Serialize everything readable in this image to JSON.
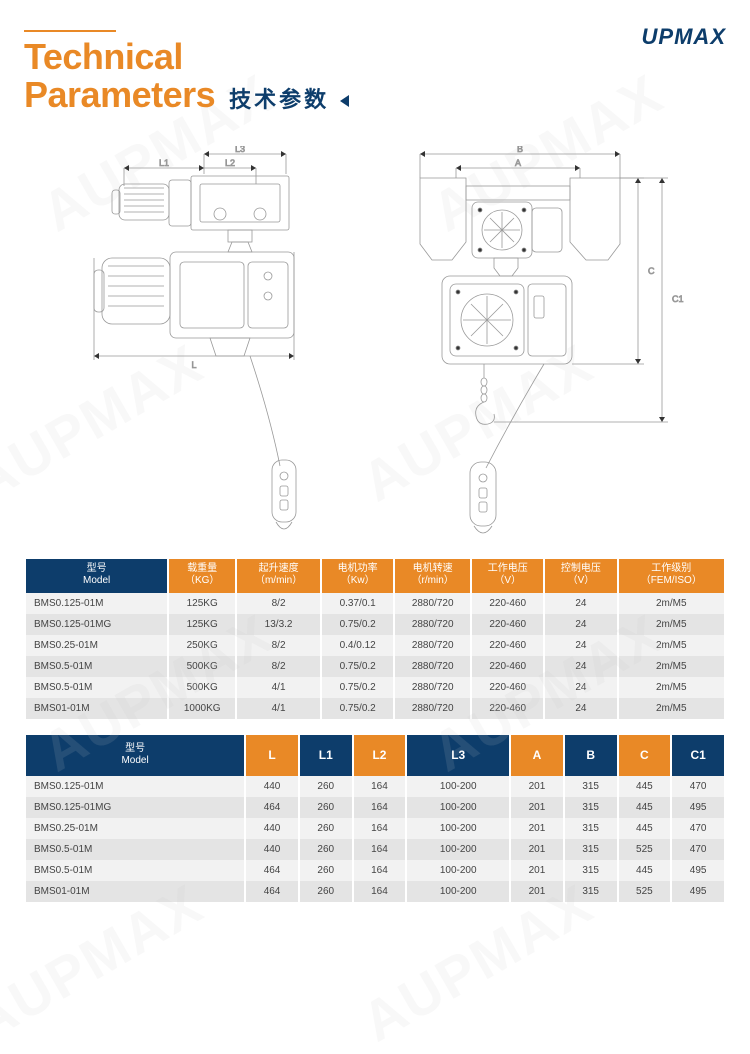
{
  "brand": "UPMAX",
  "title": {
    "en1": "Technical",
    "en2": "Parameters",
    "cn": "技术参数"
  },
  "diagram": {
    "labels": {
      "L": "L",
      "L1": "L1",
      "L2": "L2",
      "L3": "L3",
      "A": "A",
      "B": "B",
      "C": "C",
      "C1": "C1"
    },
    "line_color": "#888888",
    "dim_color": "#333333"
  },
  "table1": {
    "headers": [
      {
        "cn": "型号",
        "en": "Model",
        "cls": "model"
      },
      {
        "cn": "载重量",
        "en": "（KG）",
        "cls": "spec"
      },
      {
        "cn": "起升速度",
        "en": "（m/min）",
        "cls": "spec"
      },
      {
        "cn": "电机功率",
        "en": "（Kw）",
        "cls": "spec"
      },
      {
        "cn": "电机转速",
        "en": "（r/min）",
        "cls": "spec"
      },
      {
        "cn": "工作电压",
        "en": "（V）",
        "cls": "spec"
      },
      {
        "cn": "控制电压",
        "en": "（V）",
        "cls": "spec"
      },
      {
        "cn": "工作级别",
        "en": "（FEM/ISO）",
        "cls": "spec"
      }
    ],
    "rows": [
      [
        "BMS0.125-01M",
        "125KG",
        "8/2",
        "0.37/0.1",
        "2880/720",
        "220-460",
        "24",
        "2m/M5"
      ],
      [
        "BMS0.125-01MG",
        "125KG",
        "13/3.2",
        "0.75/0.2",
        "2880/720",
        "220-460",
        "24",
        "2m/M5"
      ],
      [
        "BMS0.25-01M",
        "250KG",
        "8/2",
        "0.4/0.12",
        "2880/720",
        "220-460",
        "24",
        "2m/M5"
      ],
      [
        "BMS0.5-01M",
        "500KG",
        "8/2",
        "0.75/0.2",
        "2880/720",
        "220-460",
        "24",
        "2m/M5"
      ],
      [
        "BMS0.5-01M",
        "500KG",
        "4/1",
        "0.75/0.2",
        "2880/720",
        "220-460",
        "24",
        "2m/M5"
      ],
      [
        "BMS01-01M",
        "1000KG",
        "4/1",
        "0.75/0.2",
        "2880/720",
        "220-460",
        "24",
        "2m/M5"
      ]
    ]
  },
  "table2": {
    "headers": [
      {
        "label": "型号",
        "en": "Model",
        "cls": "model"
      },
      {
        "label": "L",
        "cls": "dim"
      },
      {
        "label": "L1",
        "cls": "dimB"
      },
      {
        "label": "L2",
        "cls": "dim"
      },
      {
        "label": "L3",
        "cls": "dimB"
      },
      {
        "label": "A",
        "cls": "dim"
      },
      {
        "label": "B",
        "cls": "dimB"
      },
      {
        "label": "C",
        "cls": "dim"
      },
      {
        "label": "C1",
        "cls": "dimB"
      }
    ],
    "rows": [
      [
        "BMS0.125-01M",
        "440",
        "260",
        "164",
        "100-200",
        "201",
        "315",
        "445",
        "470"
      ],
      [
        "BMS0.125-01MG",
        "464",
        "260",
        "164",
        "100-200",
        "201",
        "315",
        "445",
        "495"
      ],
      [
        "BMS0.25-01M",
        "440",
        "260",
        "164",
        "100-200",
        "201",
        "315",
        "445",
        "470"
      ],
      [
        "BMS0.5-01M",
        "440",
        "260",
        "164",
        "100-200",
        "201",
        "315",
        "525",
        "470"
      ],
      [
        "BMS0.5-01M",
        "464",
        "260",
        "164",
        "100-200",
        "201",
        "315",
        "445",
        "495"
      ],
      [
        "BMS01-01M",
        "464",
        "260",
        "164",
        "100-200",
        "201",
        "315",
        "525",
        "495"
      ]
    ]
  },
  "colors": {
    "orange": "#e98926",
    "navy": "#0d3d6b",
    "row_light": "#f2f2f2",
    "row_dark": "#e4e4e4"
  },
  "watermark_text": "AUPMAX"
}
